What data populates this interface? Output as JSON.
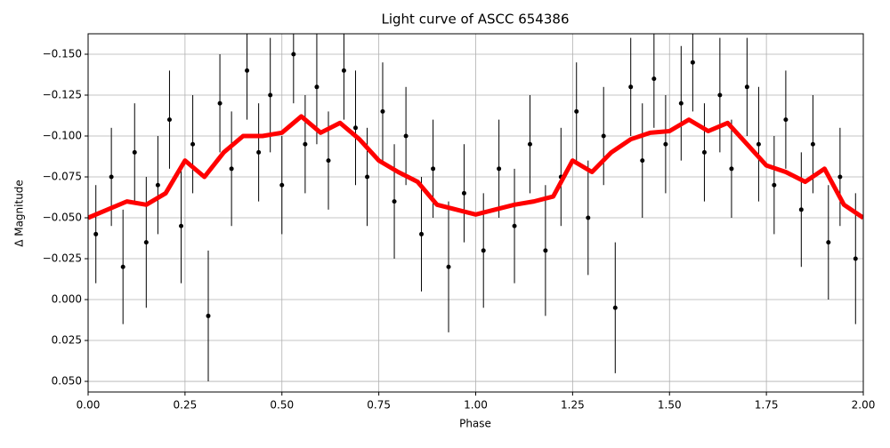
{
  "chart_data": {
    "type": "errorbar",
    "title": "Light curve of ASCC 654386",
    "xlabel": "Phase",
    "ylabel": "Δ Magnitude",
    "xlim": [
      0,
      2
    ],
    "ylim": [
      -0.1625,
      0.0565
    ],
    "invert_y": true,
    "grid": true,
    "xticks": [
      {
        "value": 0,
        "label": "0.00"
      },
      {
        "value": 0.25,
        "label": "0.25"
      },
      {
        "value": 0.5,
        "label": "0.50"
      },
      {
        "value": 0.75,
        "label": "0.75"
      },
      {
        "value": 1,
        "label": "1.00"
      },
      {
        "value": 1.25,
        "label": "1.25"
      },
      {
        "value": 1.5,
        "label": "1.50"
      },
      {
        "value": 1.75,
        "label": "1.75"
      },
      {
        "value": 2,
        "label": "2.00"
      }
    ],
    "yticks": [
      {
        "value": -0.15,
        "label": "−0.150"
      },
      {
        "value": -0.125,
        "label": "−0.125"
      },
      {
        "value": -0.1,
        "label": "−0.100"
      },
      {
        "value": -0.075,
        "label": "−0.075"
      },
      {
        "value": -0.05,
        "label": "−0.050"
      },
      {
        "value": -0.025,
        "label": "−0.025"
      },
      {
        "value": 0,
        "label": "0.000"
      },
      {
        "value": 0.025,
        "label": "0.025"
      },
      {
        "value": 0.05,
        "label": "0.050"
      }
    ],
    "points": {
      "color": "#000000",
      "x": [
        0.02,
        0.06,
        0.09,
        0.12,
        0.15,
        0.18,
        0.21,
        0.24,
        0.27,
        0.31,
        0.34,
        0.37,
        0.41,
        0.44,
        0.47,
        0.5,
        0.53,
        0.56,
        0.59,
        0.62,
        0.66,
        0.69,
        0.72,
        0.76,
        0.79,
        0.82,
        0.86,
        0.89,
        0.93,
        0.97,
        1.02,
        1.06,
        1.1,
        1.14,
        1.18,
        1.22,
        1.26,
        1.29,
        1.33,
        1.36,
        1.4,
        1.43,
        1.46,
        1.49,
        1.53,
        1.56,
        1.59,
        1.63,
        1.66,
        1.7,
        1.73,
        1.77,
        1.8,
        1.84,
        1.87,
        1.91,
        1.94,
        1.98
      ],
      "y": [
        -0.04,
        -0.075,
        -0.02,
        -0.09,
        -0.035,
        -0.07,
        -0.11,
        -0.045,
        -0.095,
        0.01,
        -0.12,
        -0.08,
        -0.14,
        -0.09,
        -0.125,
        -0.07,
        -0.15,
        -0.095,
        -0.13,
        -0.085,
        -0.14,
        -0.105,
        -0.075,
        -0.115,
        -0.06,
        -0.1,
        -0.04,
        -0.08,
        -0.02,
        -0.065,
        -0.03,
        -0.08,
        -0.045,
        -0.095,
        -0.03,
        -0.075,
        -0.115,
        -0.05,
        -0.1,
        0.005,
        -0.13,
        -0.085,
        -0.135,
        -0.095,
        -0.12,
        -0.145,
        -0.09,
        -0.125,
        -0.08,
        -0.13,
        -0.095,
        -0.07,
        -0.11,
        -0.055,
        -0.095,
        -0.035,
        -0.075,
        -0.025
      ],
      "yerr": [
        0.03,
        0.03,
        0.035,
        0.03,
        0.04,
        0.03,
        0.03,
        0.035,
        0.03,
        0.04,
        0.03,
        0.035,
        0.03,
        0.03,
        0.035,
        0.03,
        0.03,
        0.03,
        0.035,
        0.03,
        0.03,
        0.035,
        0.03,
        0.03,
        0.035,
        0.03,
        0.035,
        0.03,
        0.04,
        0.03,
        0.035,
        0.03,
        0.035,
        0.03,
        0.04,
        0.03,
        0.03,
        0.035,
        0.03,
        0.04,
        0.03,
        0.035,
        0.03,
        0.03,
        0.035,
        0.03,
        0.03,
        0.035,
        0.03,
        0.03,
        0.035,
        0.03,
        0.03,
        0.035,
        0.03,
        0.035,
        0.03,
        0.04
      ]
    },
    "fit": {
      "color": "#ff0000",
      "x": [
        0,
        0.05,
        0.1,
        0.15,
        0.2,
        0.25,
        0.3,
        0.35,
        0.4,
        0.45,
        0.5,
        0.55,
        0.6,
        0.65,
        0.7,
        0.75,
        0.8,
        0.85,
        0.9,
        0.95,
        1,
        1.05,
        1.1,
        1.15,
        1.2,
        1.25,
        1.3,
        1.35,
        1.4,
        1.45,
        1.5,
        1.55,
        1.6,
        1.65,
        1.7,
        1.75,
        1.8,
        1.85,
        1.9,
        1.95,
        2
      ],
      "y": [
        -0.05,
        -0.055,
        -0.06,
        -0.058,
        -0.065,
        -0.085,
        -0.075,
        -0.09,
        -0.1,
        -0.1,
        -0.102,
        -0.112,
        -0.102,
        -0.108,
        -0.098,
        -0.085,
        -0.078,
        -0.072,
        -0.058,
        -0.055,
        -0.052,
        -0.055,
        -0.058,
        -0.06,
        -0.063,
        -0.085,
        -0.078,
        -0.09,
        -0.098,
        -0.102,
        -0.103,
        -0.11,
        -0.103,
        -0.108,
        -0.095,
        -0.082,
        -0.078,
        -0.072,
        -0.08,
        -0.058,
        -0.05
      ]
    }
  }
}
